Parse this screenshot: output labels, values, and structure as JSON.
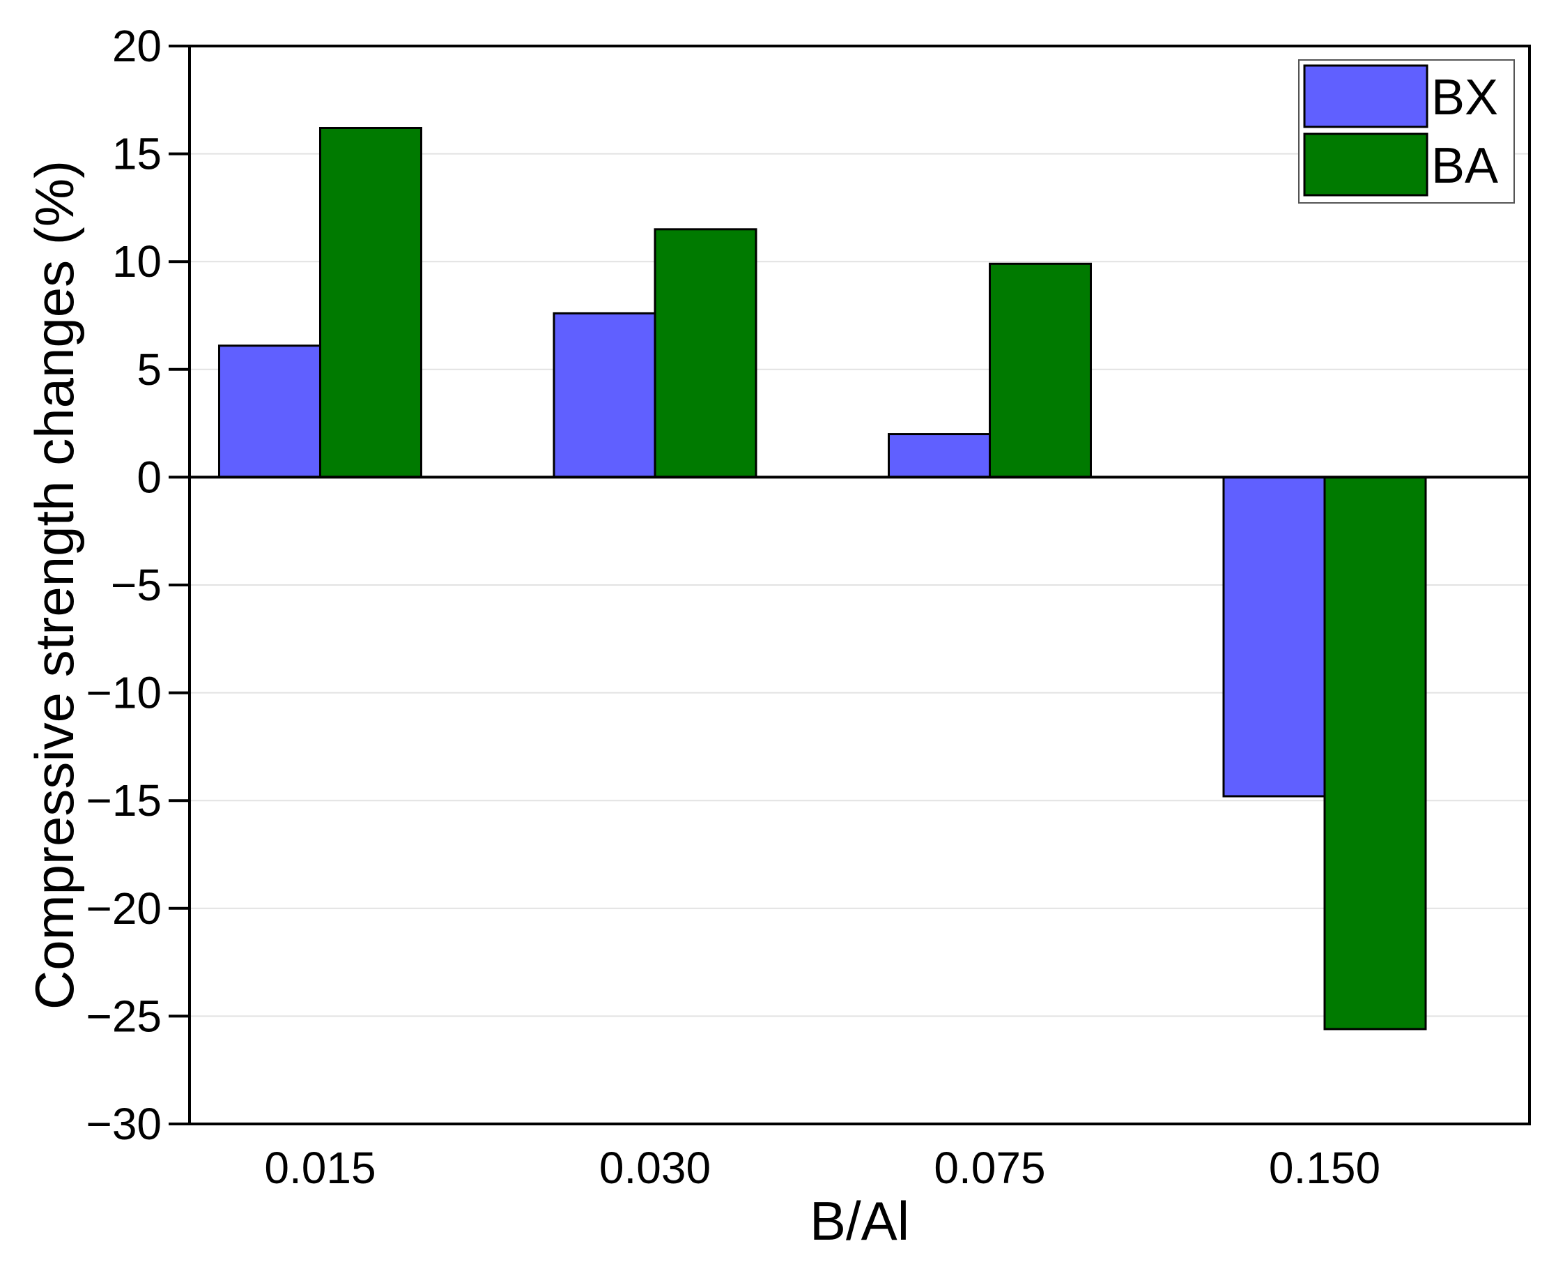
{
  "chart_data": {
    "type": "bar",
    "categories": [
      "0.015",
      "0.030",
      "0.075",
      "0.150"
    ],
    "series": [
      {
        "name": "BX",
        "values": [
          6.1,
          7.6,
          2.0,
          -14.8
        ],
        "color": "#6060ff"
      },
      {
        "name": "BA",
        "values": [
          16.2,
          11.5,
          9.9,
          -25.6
        ],
        "color": "#007a00"
      }
    ],
    "xlabel": "B/Al",
    "ylabel": "Compressive strength changes (%)",
    "ylim": [
      -30,
      20
    ],
    "yticks": [
      20,
      15,
      10,
      5,
      0,
      -5,
      -10,
      -15,
      -20,
      -25,
      -30
    ],
    "ytick_labels": [
      "20",
      "15",
      "10",
      "5",
      "0",
      "−5",
      "−10",
      "−15",
      "−20",
      "−25",
      "−30"
    ],
    "grid": true,
    "legend_position": "top-right"
  }
}
